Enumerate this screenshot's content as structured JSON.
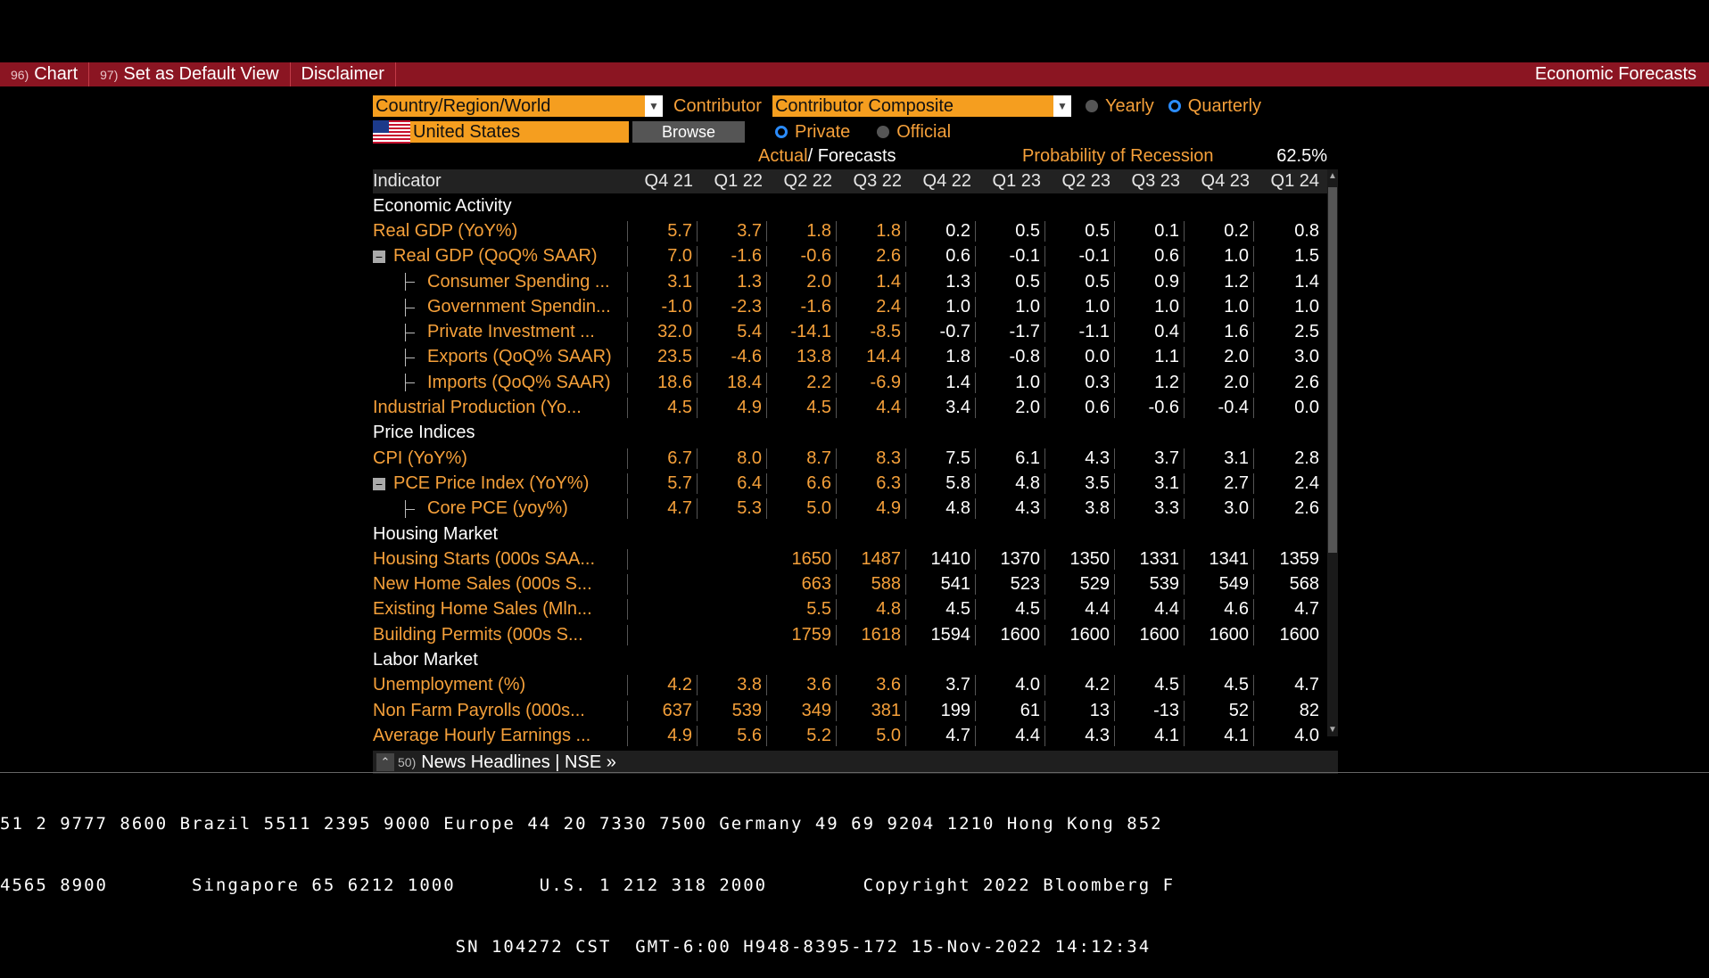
{
  "menu": {
    "items": [
      {
        "num": "96)",
        "label": "Chart"
      },
      {
        "num": "97)",
        "label": "Set as Default View"
      },
      {
        "num": "",
        "label": "Disclaimer"
      }
    ],
    "right_title": "Economic Forecasts"
  },
  "filters": {
    "region_select": "Country/Region/World",
    "contributor_label": "Contributor",
    "contributor_select": "Contributor Composite",
    "yearly_label": "Yearly",
    "quarterly_label": "Quarterly",
    "country": "United States",
    "browse_label": "Browse",
    "private_label": "Private",
    "official_label": "Official",
    "selected_period": "Quarterly",
    "selected_source": "Private"
  },
  "legend": {
    "actual_label": "Actual",
    "slash": "/",
    "forecasts_label": "Forecasts",
    "recession_label": "Probability of Recession",
    "recession_value": "62.5%"
  },
  "table": {
    "header_indicator": "Indicator",
    "columns": [
      "Q4 21",
      "Q1 22",
      "Q2 22",
      "Q3 22",
      "Q4 22",
      "Q1 23",
      "Q2 23",
      "Q3 23",
      "Q4 23",
      "Q1 24"
    ],
    "rows": [
      {
        "type": "section",
        "label": "Economic Activity"
      },
      {
        "type": "row",
        "tree": "none",
        "label": "Real GDP (YoY%)",
        "values": [
          "5.7",
          "3.7",
          "1.8",
          "1.8",
          "0.2",
          "0.5",
          "0.5",
          "0.1",
          "0.2",
          "0.8"
        ]
      },
      {
        "type": "row",
        "tree": "minus",
        "label": "Real GDP (QoQ% SAAR)",
        "values": [
          "7.0",
          "-1.6",
          "-0.6",
          "2.6",
          "0.6",
          "-0.1",
          "-0.1",
          "0.6",
          "1.0",
          "1.5"
        ]
      },
      {
        "type": "row",
        "tree": "child",
        "label": "Consumer Spending ...",
        "values": [
          "3.1",
          "1.3",
          "2.0",
          "1.4",
          "1.3",
          "0.5",
          "0.5",
          "0.9",
          "1.2",
          "1.4"
        ]
      },
      {
        "type": "row",
        "tree": "child",
        "label": "Government Spendin...",
        "values": [
          "-1.0",
          "-2.3",
          "-1.6",
          "2.4",
          "1.0",
          "1.0",
          "1.0",
          "1.0",
          "1.0",
          "1.0"
        ]
      },
      {
        "type": "row",
        "tree": "child",
        "label": "Private Investment ...",
        "values": [
          "32.0",
          "5.4",
          "-14.1",
          "-8.5",
          "-0.7",
          "-1.7",
          "-1.1",
          "0.4",
          "1.6",
          "2.5"
        ]
      },
      {
        "type": "row",
        "tree": "child",
        "label": "Exports (QoQ% SAAR)",
        "values": [
          "23.5",
          "-4.6",
          "13.8",
          "14.4",
          "1.8",
          "-0.8",
          "0.0",
          "1.1",
          "2.0",
          "3.0"
        ]
      },
      {
        "type": "row",
        "tree": "child",
        "label": "Imports (QoQ% SAAR)",
        "values": [
          "18.6",
          "18.4",
          "2.2",
          "-6.9",
          "1.4",
          "1.0",
          "0.3",
          "1.2",
          "2.0",
          "2.6"
        ]
      },
      {
        "type": "row",
        "tree": "none",
        "label": "Industrial Production (Yo...",
        "values": [
          "4.5",
          "4.9",
          "4.5",
          "4.4",
          "3.4",
          "2.0",
          "0.6",
          "-0.6",
          "-0.4",
          "0.0"
        ]
      },
      {
        "type": "section",
        "label": "Price Indices"
      },
      {
        "type": "row",
        "tree": "none",
        "label": "CPI (YoY%)",
        "values": [
          "6.7",
          "8.0",
          "8.7",
          "8.3",
          "7.5",
          "6.1",
          "4.3",
          "3.7",
          "3.1",
          "2.8"
        ]
      },
      {
        "type": "row",
        "tree": "minus",
        "label": "PCE Price Index (YoY%)",
        "values": [
          "5.7",
          "6.4",
          "6.6",
          "6.3",
          "5.8",
          "4.8",
          "3.5",
          "3.1",
          "2.7",
          "2.4"
        ]
      },
      {
        "type": "row",
        "tree": "child",
        "label": "Core PCE (yoy%)",
        "values": [
          "4.7",
          "5.3",
          "5.0",
          "4.9",
          "4.8",
          "4.3",
          "3.8",
          "3.3",
          "3.0",
          "2.6"
        ]
      },
      {
        "type": "section",
        "label": "Housing Market"
      },
      {
        "type": "row",
        "tree": "none",
        "label": "Housing Starts (000s SAA...",
        "values": [
          "",
          "",
          "1650",
          "1487",
          "1410",
          "1370",
          "1350",
          "1331",
          "1341",
          "1359"
        ]
      },
      {
        "type": "row",
        "tree": "none",
        "label": "New Home Sales (000s S...",
        "values": [
          "",
          "",
          "663",
          "588",
          "541",
          "523",
          "529",
          "539",
          "549",
          "568"
        ]
      },
      {
        "type": "row",
        "tree": "none",
        "label": "Existing Home Sales (Mln...",
        "values": [
          "",
          "",
          "5.5",
          "4.8",
          "4.5",
          "4.5",
          "4.4",
          "4.4",
          "4.6",
          "4.7"
        ]
      },
      {
        "type": "row",
        "tree": "none",
        "label": "Building Permits (000s S...",
        "values": [
          "",
          "",
          "1759",
          "1618",
          "1594",
          "1600",
          "1600",
          "1600",
          "1600",
          "1600"
        ]
      },
      {
        "type": "section",
        "label": "Labor Market"
      },
      {
        "type": "row",
        "tree": "none",
        "label": "Unemployment (%)",
        "values": [
          "4.2",
          "3.8",
          "3.6",
          "3.6",
          "3.7",
          "4.0",
          "4.2",
          "4.5",
          "4.5",
          "4.7"
        ]
      },
      {
        "type": "row",
        "tree": "none",
        "label": "Non Farm Payrolls (000s...",
        "values": [
          "637",
          "539",
          "349",
          "381",
          "199",
          "61",
          "13",
          "-13",
          "52",
          "82"
        ]
      },
      {
        "type": "row",
        "tree": "none",
        "label": "Average Hourly Earnings ...",
        "values": [
          "4.9",
          "5.6",
          "5.2",
          "5.0",
          "4.7",
          "4.4",
          "4.3",
          "4.1",
          "4.1",
          "4.0"
        ]
      }
    ],
    "actual_column_count": 4
  },
  "newsbar": {
    "num": "50)",
    "label": "News Headlines | NSE »"
  },
  "ticker": {
    "line1": "51 2 9777 8600 Brazil 5511 2395 9000 Europe 44 20 7330 7500 Germany 49 69 9204 1210 Hong Kong 852",
    "line2": "4565 8900       Singapore 65 6212 1000       U.S. 1 212 318 2000        Copyright 2022 Bloomberg F",
    "line3": "                                      SN 104272 CST  GMT-6:00 H948-8395-172 15-Nov-2022 14:12:34"
  },
  "colors": {
    "menu_bg": "#8b1522",
    "accent_orange": "#f5a03a",
    "radio_on": "#2b8cff"
  }
}
